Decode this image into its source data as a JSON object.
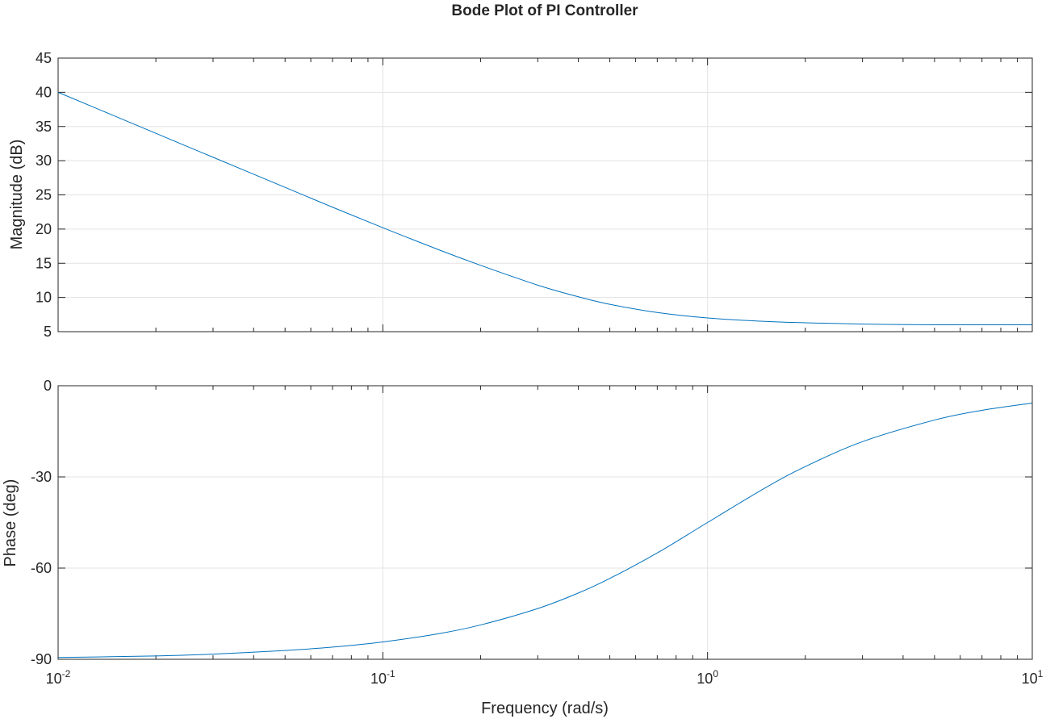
{
  "chart_data": [
    {
      "type": "line",
      "title": "Bode Plot of PI Controller",
      "xlabel": "",
      "ylabel": "Magnitude (dB)",
      "xscale": "log",
      "xlim": [
        0.01,
        10
      ],
      "ylim": [
        5,
        45
      ],
      "yticks": [
        "5",
        "10",
        "15",
        "20",
        "25",
        "30",
        "35",
        "40",
        "45"
      ],
      "grid": true,
      "color": "#0072BD",
      "series": [
        {
          "x": [
            0.01,
            0.02,
            0.03,
            0.05,
            0.07,
            0.1,
            0.15,
            0.2,
            0.3,
            0.4,
            0.5,
            0.7,
            1,
            1.5,
            2,
            3,
            5,
            7,
            10
          ],
          "values": [
            40.0,
            34.0,
            30.5,
            26.1,
            23.2,
            20.2,
            16.9,
            14.7,
            11.8,
            10.1,
            9.0,
            7.8,
            7.0,
            6.5,
            6.3,
            6.1,
            6.0,
            6.0,
            6.0
          ]
        }
      ]
    },
    {
      "type": "line",
      "xlabel": "Frequency (rad/s)",
      "ylabel": "Phase (deg)",
      "xscale": "log",
      "xlim": [
        0.01,
        10
      ],
      "ylim": [
        -90,
        0
      ],
      "yticks": [
        "-90",
        "-60",
        "-30",
        "0"
      ],
      "xticks": [
        {
          "base": "10",
          "exp": "-2"
        },
        {
          "base": "10",
          "exp": "-1"
        },
        {
          "base": "10",
          "exp": "0"
        },
        {
          "base": "10",
          "exp": "1"
        }
      ],
      "grid": true,
      "color": "#0072BD",
      "series": [
        {
          "x": [
            0.01,
            0.02,
            0.03,
            0.05,
            0.07,
            0.1,
            0.15,
            0.2,
            0.3,
            0.4,
            0.5,
            0.7,
            1,
            1.5,
            2,
            3,
            5,
            7,
            10
          ],
          "values": [
            -89.4,
            -88.9,
            -88.3,
            -87.1,
            -86.0,
            -84.3,
            -81.5,
            -78.7,
            -73.3,
            -68.2,
            -63.4,
            -55.0,
            -45.0,
            -33.7,
            -26.6,
            -18.4,
            -11.3,
            -8.1,
            -5.7
          ]
        }
      ]
    }
  ]
}
